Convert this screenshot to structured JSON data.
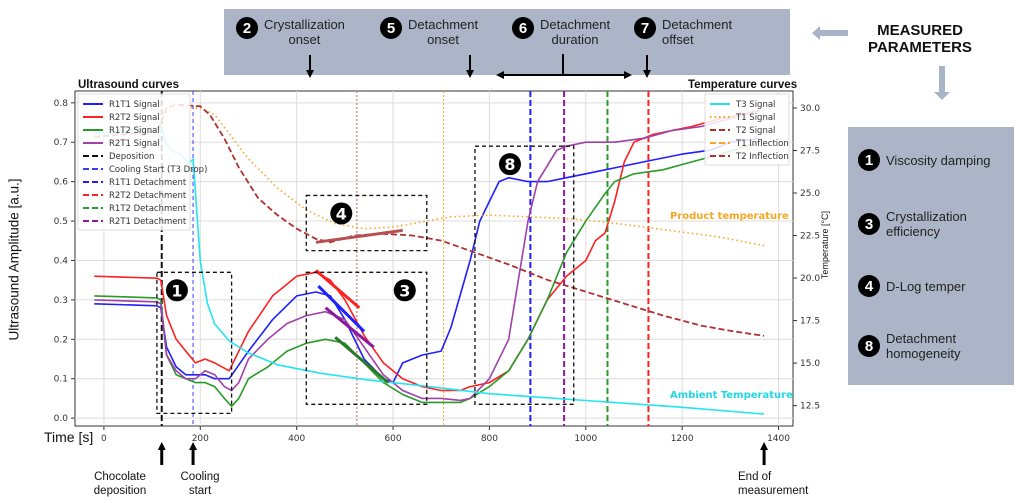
{
  "header": {
    "measured_title_line1": "MEASURED",
    "measured_title_line2": "PARAMETERS",
    "top_params": [
      {
        "num": "2",
        "line1": "Crystallization",
        "line2": "onset"
      },
      {
        "num": "5",
        "line1": "Detachment",
        "line2": "onset"
      },
      {
        "num": "6",
        "line1": "Detachment",
        "line2": "duration"
      },
      {
        "num": "7",
        "line1": "Detachment",
        "line2": "offset"
      }
    ],
    "right_params": [
      {
        "num": "1",
        "line1": "Viscosity damping",
        "line2": ""
      },
      {
        "num": "3",
        "line1": "Crystallization",
        "line2": "efficiency"
      },
      {
        "num": "4",
        "line1": "D-Log temper",
        "line2": ""
      },
      {
        "num": "8",
        "line1": "Detachment",
        "line2": "homogeneity"
      }
    ],
    "panel_color": "#abb5c7"
  },
  "bottom_labels": {
    "deposition_line1": "Chocolate",
    "deposition_line2": "deposition",
    "cooling_line1": "Cooling",
    "cooling_line2": "start",
    "end_line1": "End of",
    "end_line2": "measurement"
  },
  "chart_data": {
    "type": "line",
    "title_left": "Ultrasound curves",
    "title_right": "Temperature curves",
    "xlabel": "Time [s]",
    "ylabel": "Ultrasound Amplitude [a.u.]",
    "ylabel_right": "Temperature [°C]",
    "xlim": [
      -60,
      1430
    ],
    "ylim": [
      -0.02,
      0.83
    ],
    "ylim_right": [
      11.3,
      31.0
    ],
    "xticks": [
      0,
      200,
      400,
      600,
      800,
      1000,
      1200,
      1400
    ],
    "yticks": [
      0.0,
      0.1,
      0.2,
      0.3,
      0.4,
      0.5,
      0.6,
      0.7,
      0.8
    ],
    "yticks_right": [
      12.5,
      15.0,
      17.5,
      20.0,
      22.5,
      25.0,
      27.5,
      30.0
    ],
    "grid": true,
    "legend_left": {
      "placement": "top-left",
      "entries": [
        {
          "label": "R1T1 Signal",
          "color": "#1f1fff",
          "style": "solid"
        },
        {
          "label": "R2T2 Signal",
          "color": "#ff2020",
          "style": "solid"
        },
        {
          "label": "R1T2 Signal",
          "color": "#2a9a2a",
          "style": "solid"
        },
        {
          "label": "R2T1 Signal",
          "color": "#a040a8",
          "style": "solid"
        },
        {
          "label": "Deposition",
          "color": "#111111",
          "style": "dashed"
        },
        {
          "label": "Cooling Start (T3 Drop)",
          "color": "#3a3aff",
          "style": "dashed"
        },
        {
          "label": "R1T1 Detachment",
          "color": "#1f1fff",
          "style": "dashed"
        },
        {
          "label": "R2T2 Detachment",
          "color": "#ff2020",
          "style": "dashed"
        },
        {
          "label": "R1T2 Detachment",
          "color": "#2a9a2a",
          "style": "dashed"
        },
        {
          "label": "R2T1 Detachment",
          "color": "#8a1a9a",
          "style": "dashed"
        }
      ]
    },
    "legend_right": {
      "placement": "top-right",
      "entries": [
        {
          "label": "T3 Signal",
          "color": "#22e5ee",
          "style": "solid"
        },
        {
          "label": "T1 Signal",
          "color": "#f5a623",
          "style": "dotted"
        },
        {
          "label": "T2 Signal",
          "color": "#b03030",
          "style": "dashed"
        },
        {
          "label": "T1 Inflection",
          "color": "#f5a623",
          "style": "dashed"
        },
        {
          "label": "T2 Inflection",
          "color": "#b03030",
          "style": "dashed"
        }
      ]
    },
    "series": [
      {
        "name": "R1T1 Signal",
        "axis": "left",
        "color": "#1f1fff",
        "x": [
          -20,
          110,
          118,
          130,
          150,
          170,
          190,
          210,
          230,
          260,
          300,
          350,
          400,
          440,
          470,
          500,
          540,
          580,
          600,
          620,
          660,
          700,
          720,
          760,
          780,
          800,
          820,
          840,
          880,
          920,
          960,
          1000,
          1040,
          1080,
          1120,
          1160,
          1200,
          1260,
          1300,
          1360
        ],
        "y": [
          0.29,
          0.285,
          0.28,
          0.18,
          0.13,
          0.11,
          0.11,
          0.11,
          0.1,
          0.1,
          0.17,
          0.25,
          0.31,
          0.32,
          0.31,
          0.25,
          0.15,
          0.1,
          0.09,
          0.14,
          0.16,
          0.17,
          0.23,
          0.4,
          0.5,
          0.55,
          0.6,
          0.61,
          0.6,
          0.6,
          0.61,
          0.62,
          0.63,
          0.64,
          0.65,
          0.66,
          0.67,
          0.68,
          0.7,
          0.71
        ]
      },
      {
        "name": "R2T2 Signal",
        "axis": "left",
        "color": "#ff2020",
        "x": [
          -20,
          110,
          118,
          130,
          150,
          170,
          190,
          210,
          230,
          260,
          300,
          350,
          400,
          440,
          470,
          500,
          540,
          580,
          620,
          660,
          700,
          740,
          760,
          800,
          840,
          880,
          920,
          960,
          1000,
          1020,
          1040,
          1060,
          1080,
          1100,
          1140,
          1180,
          1220,
          1280,
          1360
        ],
        "y": [
          0.36,
          0.355,
          0.35,
          0.26,
          0.2,
          0.17,
          0.14,
          0.15,
          0.14,
          0.12,
          0.22,
          0.31,
          0.36,
          0.37,
          0.35,
          0.3,
          0.21,
          0.14,
          0.1,
          0.08,
          0.07,
          0.07,
          0.08,
          0.09,
          0.12,
          0.2,
          0.3,
          0.36,
          0.4,
          0.45,
          0.47,
          0.55,
          0.65,
          0.7,
          0.72,
          0.73,
          0.74,
          0.76,
          0.78
        ]
      },
      {
        "name": "R1T2 Signal",
        "axis": "left",
        "color": "#2a9a2a",
        "x": [
          -20,
          110,
          118,
          130,
          150,
          170,
          190,
          210,
          230,
          250,
          265,
          280,
          300,
          340,
          380,
          420,
          460,
          500,
          540,
          580,
          620,
          660,
          700,
          740,
          760,
          800,
          840,
          880,
          920,
          960,
          1000,
          1040,
          1060,
          1100,
          1160,
          1220,
          1280,
          1360
        ],
        "y": [
          0.31,
          0.305,
          0.3,
          0.16,
          0.11,
          0.1,
          0.09,
          0.09,
          0.08,
          0.05,
          0.03,
          0.05,
          0.1,
          0.13,
          0.17,
          0.19,
          0.2,
          0.19,
          0.14,
          0.09,
          0.06,
          0.04,
          0.04,
          0.04,
          0.05,
          0.08,
          0.12,
          0.2,
          0.3,
          0.42,
          0.5,
          0.57,
          0.6,
          0.62,
          0.63,
          0.65,
          0.67,
          0.7
        ]
      },
      {
        "name": "R2T1 Signal",
        "axis": "left",
        "color": "#a040a8",
        "x": [
          -20,
          110,
          118,
          130,
          150,
          170,
          190,
          210,
          230,
          250,
          265,
          280,
          300,
          340,
          380,
          420,
          460,
          500,
          540,
          580,
          620,
          660,
          700,
          740,
          760,
          800,
          840,
          860,
          880,
          900,
          940,
          960,
          1000,
          1060,
          1120,
          1180,
          1240,
          1300,
          1360
        ],
        "y": [
          0.3,
          0.295,
          0.29,
          0.16,
          0.12,
          0.1,
          0.1,
          0.12,
          0.11,
          0.08,
          0.07,
          0.09,
          0.15,
          0.2,
          0.24,
          0.26,
          0.27,
          0.25,
          0.18,
          0.11,
          0.07,
          0.05,
          0.05,
          0.045,
          0.05,
          0.1,
          0.2,
          0.35,
          0.5,
          0.6,
          0.68,
          0.69,
          0.7,
          0.7,
          0.71,
          0.73,
          0.74,
          0.76,
          0.78
        ]
      },
      {
        "name": "T3 Signal",
        "axis": "right",
        "color": "#22e5ee",
        "x": [
          -20,
          100,
          120,
          130,
          140,
          160,
          175,
          185,
          190,
          200,
          215,
          230,
          260,
          300,
          360,
          450,
          550,
          650,
          800,
          1000,
          1200,
          1370
        ],
        "y": [
          28.5,
          28.8,
          28.8,
          27.9,
          27.5,
          27.3,
          26.7,
          27.0,
          25.0,
          21.0,
          18.5,
          17.3,
          16.3,
          15.6,
          14.9,
          14.4,
          14.0,
          13.7,
          13.2,
          12.8,
          12.4,
          12.0
        ]
      },
      {
        "name": "T1 Signal",
        "axis": "right",
        "color": "#f5a623",
        "style": "dotted",
        "x": [
          -20,
          100,
          115,
          130,
          150,
          200,
          230,
          260,
          300,
          360,
          420,
          480,
          540,
          600,
          660,
          720,
          800,
          880,
          960,
          1040,
          1120,
          1200,
          1280,
          1370
        ],
        "y": [
          28.4,
          28.7,
          28.9,
          29.8,
          30.0,
          30.0,
          29.6,
          28.5,
          27.0,
          25.3,
          24.0,
          23.2,
          22.9,
          23.0,
          23.3,
          23.6,
          23.7,
          23.6,
          23.5,
          23.3,
          23.0,
          22.7,
          22.4,
          21.9
        ]
      },
      {
        "name": "T2 Signal",
        "axis": "right",
        "color": "#b03030",
        "style": "dashed",
        "x": [
          -20,
          100,
          115,
          130,
          150,
          200,
          220,
          250,
          280,
          320,
          360,
          400,
          440,
          470,
          520,
          580,
          640,
          700,
          760,
          840,
          920,
          1000,
          1080,
          1160,
          1240,
          1300,
          1370
        ],
        "y": [
          28.3,
          28.6,
          28.9,
          30.0,
          30.2,
          30.1,
          29.6,
          28.2,
          26.5,
          24.7,
          23.7,
          22.9,
          22.3,
          22.1,
          22.5,
          22.6,
          22.5,
          22.2,
          21.6,
          20.8,
          19.9,
          19.2,
          18.5,
          17.8,
          17.2,
          16.9,
          16.6
        ]
      },
      {
        "name": "T2 Inflection",
        "axis": "right",
        "color": "#b85050",
        "style": "solid-thick",
        "x": [
          440,
          620
        ],
        "y": [
          22.1,
          22.8
        ]
      }
    ],
    "fit_lines": [
      {
        "name": "R2T2 slope",
        "color": "#ff2020",
        "x": [
          440,
          530
        ],
        "y": [
          0.375,
          0.28
        ]
      },
      {
        "name": "R1T1 slope",
        "color": "#1f1fff",
        "x": [
          445,
          540
        ],
        "y": [
          0.335,
          0.22
        ]
      },
      {
        "name": "R2T1 slope",
        "color": "#8a1a9a",
        "x": [
          460,
          560
        ],
        "y": [
          0.28,
          0.18
        ]
      },
      {
        "name": "R1T2 slope",
        "color": "#2a7a2a",
        "x": [
          480,
          590
        ],
        "y": [
          0.205,
          0.09
        ]
      }
    ],
    "vertical_markers": [
      {
        "name": "Deposition",
        "x": 120,
        "color": "#111111",
        "style": "dashed"
      },
      {
        "name": "Cooling Start (T3 Drop)",
        "x": 185,
        "color": "#3a3aff",
        "style": "dashed-thin"
      },
      {
        "name": "T2 Inflection",
        "x": 525,
        "color": "#c06060",
        "style": "dotted-thin"
      },
      {
        "name": "T1 Inflection",
        "x": 705,
        "color": "#f5a623",
        "style": "dotted-thin"
      },
      {
        "name": "R1T1 Detachment",
        "x": 885,
        "color": "#1f1fff",
        "style": "dashed"
      },
      {
        "name": "R2T1 Detachment",
        "x": 955,
        "color": "#8a1a9a",
        "style": "dashed"
      },
      {
        "name": "R1T2 Detachment",
        "x": 1045,
        "color": "#2a9a2a",
        "style": "dashed"
      },
      {
        "name": "R2T2 Detachment",
        "x": 1130,
        "color": "#ff2020",
        "style": "dashed"
      }
    ],
    "region_boxes": [
      {
        "id": "1",
        "x": [
          110,
          265
        ],
        "y": [
          0.012,
          0.37
        ]
      },
      {
        "id": "3",
        "x": [
          420,
          670
        ],
        "y": [
          0.035,
          0.37
        ]
      },
      {
        "id": "4",
        "x": [
          420,
          670
        ],
        "y": [
          0.425,
          0.565
        ]
      },
      {
        "id": "8",
        "x": [
          770,
          975
        ],
        "y": [
          0.035,
          0.69
        ]
      }
    ],
    "annotations": [
      {
        "text": "Product temperature",
        "color": "#f5a623"
      },
      {
        "text": "Ambient Temperature",
        "color": "#22d8e0"
      }
    ],
    "bottom_markers_x": {
      "deposition": 120,
      "cooling": 185,
      "end": 1370
    }
  }
}
